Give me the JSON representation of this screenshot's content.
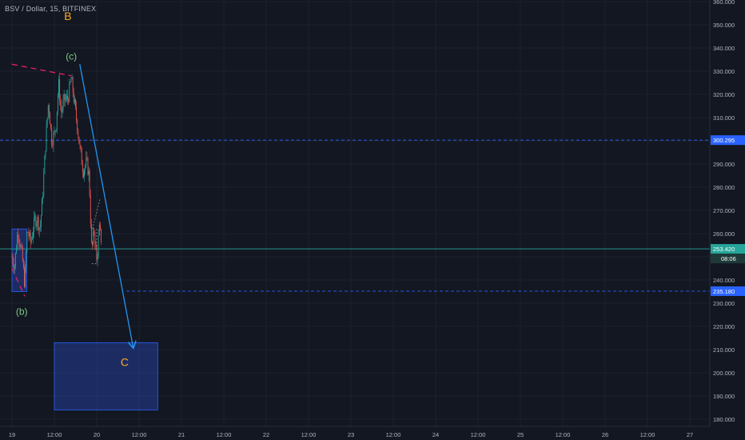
{
  "chart_data": {
    "type": "candlestick",
    "title": "BSV / Dollar, 15, BITFINEX",
    "ylim": [
      178,
      360
    ],
    "y_ticks": [
      180,
      190,
      200,
      210,
      220,
      230,
      240,
      250,
      260,
      270,
      280,
      290,
      300,
      310,
      320,
      330,
      340,
      350,
      360
    ],
    "x_ticks": [
      "19",
      "12:00",
      "20",
      "12:00",
      "21",
      "12:00",
      "22",
      "12:00",
      "23",
      "12:00",
      "24",
      "12:00",
      "25",
      "12:00",
      "26",
      "12:00",
      "27"
    ],
    "price_series": [
      [
        0,
        250
      ],
      [
        0.03,
        246
      ],
      [
        0.07,
        262
      ],
      [
        0.09,
        257
      ],
      [
        0.12,
        250
      ],
      [
        0.15,
        238
      ],
      [
        0.18,
        262
      ],
      [
        0.22,
        256
      ],
      [
        0.27,
        266
      ],
      [
        0.3,
        266
      ],
      [
        0.33,
        262
      ],
      [
        0.36,
        275
      ],
      [
        0.4,
        301
      ],
      [
        0.43,
        317
      ],
      [
        0.47,
        300
      ],
      [
        0.5,
        303
      ],
      [
        0.52,
        307
      ],
      [
        0.55,
        325
      ],
      [
        0.58,
        312
      ],
      [
        0.62,
        318
      ],
      [
        0.66,
        318
      ],
      [
        0.7,
        327
      ],
      [
        0.73,
        318
      ],
      [
        0.77,
        307
      ],
      [
        0.8,
        297
      ],
      [
        0.84,
        287
      ],
      [
        0.88,
        291
      ],
      [
        0.91,
        285
      ],
      [
        0.94,
        252
      ],
      [
        0.97,
        262
      ],
      [
        1.0,
        248
      ],
      [
        1.03,
        262
      ],
      [
        1.06,
        256
      ]
    ],
    "price_unit_note": "",
    "annotations": {
      "wave_labels": [
        {
          "text": "B",
          "x": 0.66,
          "y": 352
        },
        {
          "text": "(c)",
          "x": 0.7,
          "y": 335
        },
        {
          "text": "(b)",
          "x": 0.115,
          "y": 225
        },
        {
          "text": "C",
          "x": 1.33,
          "y": 203
        }
      ],
      "price_lines": [
        {
          "value": 300.295,
          "label": "300.295",
          "color": "#2962ff",
          "style": "dashed"
        },
        {
          "value": 253.42,
          "label": "253.420",
          "color": "#26a69a",
          "style": "solid"
        },
        {
          "value": 235.18,
          "label": "235.180",
          "color": "#2962ff",
          "style": "dashed"
        }
      ],
      "countdown_label": "08:06",
      "hidden_tick_label": "25",
      "zones": [
        {
          "x1": 0,
          "x2": 0.175,
          "y1": 235,
          "y2": 262
        },
        {
          "x1": 0.5,
          "x2": 1.72,
          "y1": 184,
          "y2": 213
        }
      ],
      "trendlines": [
        {
          "x1": 0,
          "y1": 333,
          "x2": 0.7,
          "y2": 328,
          "color": "#e91e63",
          "style": "dashed"
        },
        {
          "x1": 0,
          "y1": 245,
          "x2": 0.15,
          "y2": 233,
          "color": "#e91e63",
          "style": "dashed"
        },
        {
          "x1": 0.8,
          "y1": 333,
          "x2": 1.43,
          "y2": 211,
          "color": "#2196f3",
          "style": "arrow"
        }
      ]
    }
  },
  "colors": {
    "background": "#131722",
    "up": "#26a69a",
    "down": "#ef5350",
    "grid": "#1e222d",
    "axis_text": "#b2b5be",
    "label_orange": "#ffa726",
    "label_green": "#81c784"
  }
}
